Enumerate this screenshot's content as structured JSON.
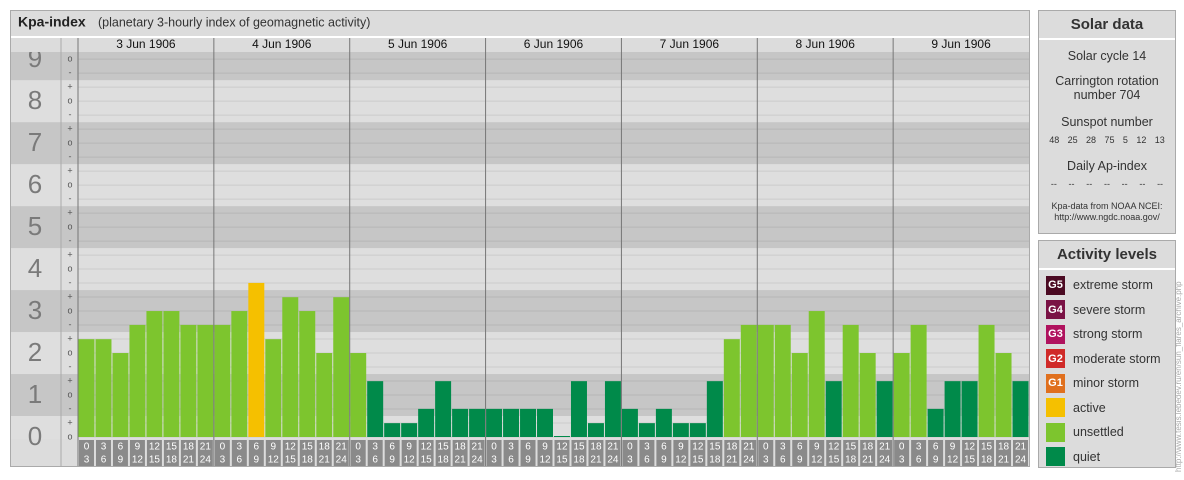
{
  "header": {
    "title": "Kpa-index",
    "subtitle": "(planetary 3-hourly index of geomagnetic activity)"
  },
  "chart_data": {
    "type": "bar",
    "days": [
      "3 Jun 1906",
      "4 Jun 1906",
      "5 Jun 1906",
      "6 Jun 1906",
      "7 Jun 1906",
      "8 Jun 1906",
      "9 Jun 1906"
    ],
    "hour_slots": [
      {
        "from": "0",
        "to": "3"
      },
      {
        "from": "3",
        "to": "6"
      },
      {
        "from": "6",
        "to": "9"
      },
      {
        "from": "9",
        "to": "12"
      },
      {
        "from": "12",
        "to": "15"
      },
      {
        "from": "15",
        "to": "18"
      },
      {
        "from": "18",
        "to": "21"
      },
      {
        "from": "21",
        "to": "24"
      }
    ],
    "values": [
      2.33,
      2.33,
      2,
      2.67,
      3,
      3,
      2.67,
      2.67,
      2.67,
      3,
      3.67,
      2.33,
      3.33,
      3,
      2,
      3.33,
      2,
      1.33,
      0.33,
      0.33,
      0.67,
      1.33,
      0.67,
      0.67,
      0.67,
      0.67,
      0.67,
      0.67,
      0,
      1.33,
      0.33,
      1.33,
      0.67,
      0.33,
      0.67,
      0.33,
      0.33,
      1.33,
      2.33,
      2.67,
      2.67,
      2.67,
      2,
      3,
      1.33,
      2.67,
      2,
      1.33,
      2,
      2.67,
      0.67,
      1.33,
      1.33,
      2.67,
      2,
      1.33
    ],
    "colors": [
      "#7dc52e",
      "#7dc52e",
      "#7dc52e",
      "#7dc52e",
      "#7dc52e",
      "#7dc52e",
      "#7dc52e",
      "#7dc52e",
      "#7dc52e",
      "#7dc52e",
      "#f5c000",
      "#7dc52e",
      "#7dc52e",
      "#7dc52e",
      "#7dc52e",
      "#7dc52e",
      "#7dc52e",
      "#008a4a",
      "#008a4a",
      "#008a4a",
      "#008a4a",
      "#008a4a",
      "#008a4a",
      "#008a4a",
      "#008a4a",
      "#008a4a",
      "#008a4a",
      "#008a4a",
      "#008a4a",
      "#008a4a",
      "#008a4a",
      "#008a4a",
      "#008a4a",
      "#008a4a",
      "#008a4a",
      "#008a4a",
      "#008a4a",
      "#008a4a",
      "#7dc52e",
      "#7dc52e",
      "#7dc52e",
      "#7dc52e",
      "#7dc52e",
      "#7dc52e",
      "#008a4a",
      "#7dc52e",
      "#7dc52e",
      "#008a4a",
      "#7dc52e",
      "#7dc52e",
      "#008a4a",
      "#008a4a",
      "#008a4a",
      "#7dc52e",
      "#7dc52e",
      "#008a4a"
    ],
    "ylim": [
      0,
      9.17
    ],
    "yticks": [
      0,
      1,
      2,
      3,
      4,
      5,
      6,
      7,
      8,
      9
    ],
    "sublevel_labels": {
      "minus": "-",
      "zero": "o",
      "plus": "+"
    }
  },
  "solar_data": {
    "title": "Solar data",
    "cycle": "Solar cycle 14",
    "carrington": "Carrington rotation number 704",
    "sunspot_title": "Sunspot number",
    "sunspots": [
      48,
      25,
      28,
      75,
      5,
      12,
      13
    ],
    "ap_title": "Daily Ap-index",
    "ap": [
      "--",
      "--",
      "--",
      "--",
      "--",
      "--",
      "--"
    ],
    "source": "Kpa-data from NOAA NCEI:",
    "source_url": "http://www.ngdc.noaa.gov/"
  },
  "activity_levels": {
    "title": "Activity levels",
    "items": [
      {
        "badge": "G5",
        "label": "extreme storm",
        "color": "#4b0a22"
      },
      {
        "badge": "G4",
        "label": "severe storm",
        "color": "#7a1245"
      },
      {
        "badge": "G3",
        "label": "strong storm",
        "color": "#b0125e"
      },
      {
        "badge": "G2",
        "label": "moderate storm",
        "color": "#d02a28"
      },
      {
        "badge": "G1",
        "label": "minor storm",
        "color": "#e0701e"
      },
      {
        "label": "active",
        "color": "#f5c000"
      },
      {
        "label": "unsettled",
        "color": "#7dc52e"
      },
      {
        "label": "quiet",
        "color": "#008a4a"
      }
    ]
  },
  "credit": "http://www.tesis.lebedev.ru/en/sun_flares_archive.php"
}
